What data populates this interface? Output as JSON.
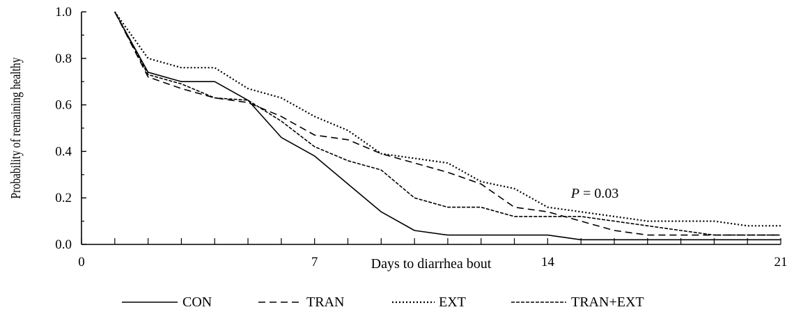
{
  "chart_data": {
    "type": "line",
    "xlabel": "Days to diarrhea bout",
    "ylabel": "Probability of remaining healthy",
    "xlim": [
      0,
      21
    ],
    "ylim": [
      0.0,
      1.0
    ],
    "xticks": [
      0,
      7,
      14,
      21
    ],
    "xtick_labels": [
      "0",
      "7",
      "14",
      "21"
    ],
    "yticks": [
      0.0,
      0.2,
      0.4,
      0.6,
      0.8,
      1.0
    ],
    "ytick_labels": [
      "0.0",
      "0.2",
      "0.4",
      "0.6",
      "0.8",
      "1.0"
    ],
    "grid": false,
    "legend_position": "bottom",
    "annotation": {
      "prefix": "P",
      "text": " = 0.03",
      "x": 14.7,
      "y": 0.2
    },
    "series": [
      {
        "name": "CON",
        "style": "solid",
        "points": [
          [
            1,
            1.0
          ],
          [
            2,
            0.74
          ],
          [
            3,
            0.7
          ],
          [
            4,
            0.7
          ],
          [
            5,
            0.62
          ],
          [
            6,
            0.46
          ],
          [
            7,
            0.38
          ],
          [
            8,
            0.26
          ],
          [
            9,
            0.14
          ],
          [
            10,
            0.06
          ],
          [
            11,
            0.04
          ],
          [
            12,
            0.04
          ],
          [
            13,
            0.04
          ],
          [
            14,
            0.04
          ],
          [
            15,
            0.02
          ],
          [
            21,
            0.02
          ]
        ]
      },
      {
        "name": "TRAN",
        "style": "dashed",
        "points": [
          [
            1,
            1.0
          ],
          [
            2,
            0.72
          ],
          [
            3,
            0.67
          ],
          [
            4,
            0.63
          ],
          [
            5,
            0.61
          ],
          [
            6,
            0.55
          ],
          [
            7,
            0.47
          ],
          [
            8,
            0.45
          ],
          [
            9,
            0.39
          ],
          [
            10,
            0.35
          ],
          [
            11,
            0.31
          ],
          [
            12,
            0.26
          ],
          [
            13,
            0.16
          ],
          [
            14,
            0.14
          ],
          [
            15,
            0.1
          ],
          [
            16,
            0.06
          ],
          [
            17,
            0.04
          ],
          [
            18,
            0.04
          ],
          [
            21,
            0.04
          ]
        ]
      },
      {
        "name": "EXT",
        "style": "dotted",
        "points": [
          [
            1,
            1.0
          ],
          [
            2,
            0.8
          ],
          [
            3,
            0.76
          ],
          [
            4,
            0.76
          ],
          [
            5,
            0.67
          ],
          [
            6,
            0.63
          ],
          [
            7,
            0.55
          ],
          [
            8,
            0.49
          ],
          [
            9,
            0.39
          ],
          [
            10,
            0.37
          ],
          [
            11,
            0.35
          ],
          [
            12,
            0.27
          ],
          [
            13,
            0.24
          ],
          [
            14,
            0.16
          ],
          [
            15,
            0.14
          ],
          [
            16,
            0.12
          ],
          [
            17,
            0.1
          ],
          [
            18,
            0.1
          ],
          [
            19,
            0.1
          ],
          [
            20,
            0.08
          ],
          [
            21,
            0.08
          ]
        ]
      },
      {
        "name": "TRAN+EXT",
        "style": "shortdash",
        "points": [
          [
            1,
            1.0
          ],
          [
            2,
            0.73
          ],
          [
            3,
            0.69
          ],
          [
            4,
            0.63
          ],
          [
            5,
            0.62
          ],
          [
            6,
            0.53
          ],
          [
            7,
            0.42
          ],
          [
            8,
            0.36
          ],
          [
            9,
            0.32
          ],
          [
            10,
            0.2
          ],
          [
            11,
            0.16
          ],
          [
            12,
            0.16
          ],
          [
            13,
            0.12
          ],
          [
            14,
            0.12
          ],
          [
            15,
            0.12
          ],
          [
            16,
            0.1
          ],
          [
            17,
            0.08
          ],
          [
            18,
            0.06
          ],
          [
            19,
            0.04
          ],
          [
            20,
            0.04
          ],
          [
            21,
            0.04
          ]
        ]
      }
    ]
  }
}
